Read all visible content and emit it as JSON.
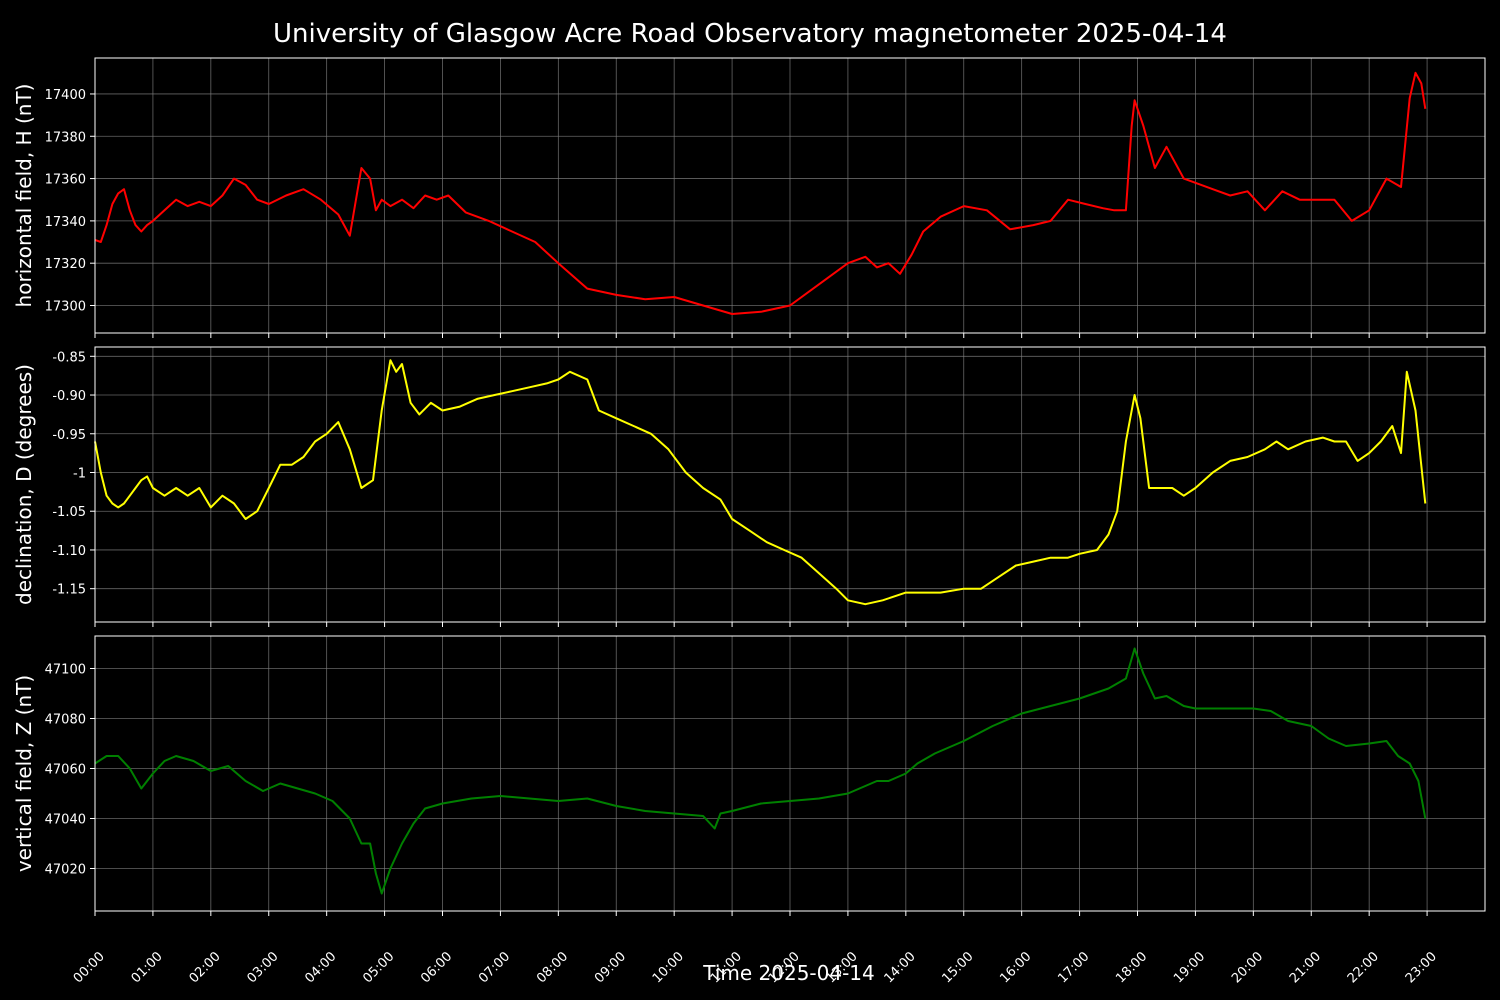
{
  "title": "University of Glasgow Acre Road Observatory magnetometer 2025-04-14",
  "xlabel": "Time 2025-04-14",
  "x_tick_labels": [
    "00:00",
    "01:00",
    "02:00",
    "03:00",
    "04:00",
    "05:00",
    "06:00",
    "07:00",
    "08:00",
    "09:00",
    "10:00",
    "11:00",
    "12:00",
    "13:00",
    "14:00",
    "15:00",
    "16:00",
    "17:00",
    "18:00",
    "19:00",
    "20:00",
    "21:00",
    "22:00",
    "23:00"
  ],
  "colors": {
    "background": "#000000",
    "H": "#ff0000",
    "D": "#ffff00",
    "Z": "#008000",
    "grid": "#808080",
    "axes": "#ffffff"
  },
  "chart_data": [
    {
      "type": "line",
      "ylabel": "horizontal field, H (nT)",
      "xlim": [
        0,
        24
      ],
      "ylim": [
        17287,
        17417
      ],
      "yticks": [
        17300,
        17320,
        17340,
        17360,
        17380,
        17400
      ],
      "grid": true,
      "series": [
        {
          "color": "#ff0000",
          "x": [
            0,
            0.1,
            0.2,
            0.3,
            0.4,
            0.5,
            0.6,
            0.7,
            0.8,
            0.9,
            1.0,
            1.2,
            1.4,
            1.6,
            1.8,
            2.0,
            2.2,
            2.4,
            2.6,
            2.8,
            3.0,
            3.3,
            3.6,
            3.9,
            4.2,
            4.4,
            4.6,
            4.75,
            4.85,
            4.95,
            5.1,
            5.3,
            5.5,
            5.7,
            5.9,
            6.1,
            6.4,
            6.8,
            7.2,
            7.6,
            8.0,
            8.5,
            9.0,
            9.5,
            10.0,
            10.5,
            11.0,
            11.5,
            12.0,
            12.5,
            13.0,
            13.3,
            13.5,
            13.7,
            13.9,
            14.1,
            14.3,
            14.6,
            15.0,
            15.4,
            15.8,
            16.2,
            16.5,
            16.8,
            17.1,
            17.4,
            17.6,
            17.8,
            17.9,
            17.95,
            18.1,
            18.3,
            18.5,
            18.8,
            19.0,
            19.3,
            19.6,
            19.9,
            20.2,
            20.5,
            20.8,
            21.1,
            21.4,
            21.7,
            22.0,
            22.3,
            22.55,
            22.7,
            22.8,
            22.9,
            22.97
          ],
          "y": [
            17331,
            17330,
            17338,
            17348,
            17353,
            17355,
            17345,
            17338,
            17335,
            17338,
            17340,
            17345,
            17350,
            17347,
            17349,
            17347,
            17352,
            17360,
            17357,
            17350,
            17348,
            17352,
            17355,
            17350,
            17343,
            17333,
            17365,
            17360,
            17345,
            17350,
            17347,
            17350,
            17346,
            17352,
            17350,
            17352,
            17344,
            17340,
            17335,
            17330,
            17320,
            17308,
            17305,
            17303,
            17304,
            17300,
            17296,
            17297,
            17300,
            17310,
            17320,
            17323,
            17318,
            17320,
            17315,
            17324,
            17335,
            17342,
            17347,
            17345,
            17336,
            17338,
            17340,
            17350,
            17348,
            17346,
            17345,
            17345,
            17385,
            17397,
            17385,
            17365,
            17375,
            17360,
            17358,
            17355,
            17352,
            17354,
            17345,
            17354,
            17350,
            17350,
            17350,
            17340,
            17345,
            17360,
            17356,
            17398,
            17410,
            17405,
            17393
          ]
        }
      ]
    },
    {
      "type": "line",
      "ylabel": "declination, D (degrees)",
      "xlim": [
        0,
        24
      ],
      "ylim": [
        -1.193,
        -0.838
      ],
      "yticks": [
        -1.15,
        -1.1,
        -1.05,
        -1.0,
        -0.95,
        -0.9,
        -0.85
      ],
      "grid": true,
      "series": [
        {
          "color": "#ffff00",
          "x": [
            0,
            0.1,
            0.2,
            0.3,
            0.4,
            0.5,
            0.6,
            0.7,
            0.8,
            0.9,
            1.0,
            1.2,
            1.4,
            1.6,
            1.8,
            2.0,
            2.2,
            2.4,
            2.6,
            2.8,
            3.0,
            3.2,
            3.4,
            3.6,
            3.8,
            4.0,
            4.2,
            4.4,
            4.6,
            4.8,
            4.95,
            5.1,
            5.2,
            5.3,
            5.45,
            5.6,
            5.8,
            6.0,
            6.3,
            6.6,
            6.9,
            7.2,
            7.5,
            7.8,
            8.0,
            8.2,
            8.5,
            8.7,
            9.0,
            9.3,
            9.6,
            9.9,
            10.2,
            10.5,
            10.8,
            11.0,
            11.3,
            11.6,
            11.9,
            12.2,
            12.5,
            12.8,
            13.0,
            13.3,
            13.6,
            14.0,
            14.3,
            14.6,
            15.0,
            15.3,
            15.6,
            15.9,
            16.2,
            16.5,
            16.8,
            17.0,
            17.3,
            17.5,
            17.65,
            17.8,
            17.95,
            18.05,
            18.2,
            18.4,
            18.6,
            18.8,
            19.0,
            19.3,
            19.6,
            19.9,
            20.2,
            20.4,
            20.6,
            20.9,
            21.2,
            21.4,
            21.6,
            21.8,
            22.0,
            22.2,
            22.4,
            22.55,
            22.65,
            22.8,
            22.97
          ],
          "y": [
            -0.96,
            -1.0,
            -1.03,
            -1.04,
            -1.045,
            -1.04,
            -1.03,
            -1.02,
            -1.01,
            -1.005,
            -1.02,
            -1.03,
            -1.02,
            -1.03,
            -1.02,
            -1.045,
            -1.03,
            -1.04,
            -1.06,
            -1.05,
            -1.02,
            -0.99,
            -0.99,
            -0.98,
            -0.96,
            -0.95,
            -0.935,
            -0.97,
            -1.02,
            -1.01,
            -0.92,
            -0.855,
            -0.87,
            -0.86,
            -0.91,
            -0.925,
            -0.91,
            -0.92,
            -0.915,
            -0.905,
            -0.9,
            -0.895,
            -0.89,
            -0.885,
            -0.88,
            -0.87,
            -0.88,
            -0.92,
            -0.93,
            -0.94,
            -0.95,
            -0.97,
            -1.0,
            -1.02,
            -1.035,
            -1.06,
            -1.075,
            -1.09,
            -1.1,
            -1.11,
            -1.13,
            -1.15,
            -1.165,
            -1.17,
            -1.165,
            -1.155,
            -1.155,
            -1.155,
            -1.15,
            -1.15,
            -1.135,
            -1.12,
            -1.115,
            -1.11,
            -1.11,
            -1.105,
            -1.1,
            -1.08,
            -1.05,
            -0.96,
            -0.9,
            -0.93,
            -1.02,
            -1.02,
            -1.02,
            -1.03,
            -1.02,
            -1.0,
            -0.985,
            -0.98,
            -0.97,
            -0.96,
            -0.97,
            -0.96,
            -0.955,
            -0.96,
            -0.96,
            -0.985,
            -0.975,
            -0.96,
            -0.94,
            -0.975,
            -0.87,
            -0.92,
            -1.04
          ]
        }
      ]
    },
    {
      "type": "line",
      "ylabel": "vertical field, Z (nT)",
      "xlim": [
        0,
        24
      ],
      "ylim": [
        47003,
        47113
      ],
      "yticks": [
        47020,
        47040,
        47060,
        47080,
        47100
      ],
      "grid": true,
      "series": [
        {
          "color": "#008000",
          "x": [
            0,
            0.2,
            0.4,
            0.6,
            0.8,
            1.0,
            1.2,
            1.4,
            1.7,
            2.0,
            2.3,
            2.6,
            2.9,
            3.2,
            3.5,
            3.8,
            4.1,
            4.4,
            4.6,
            4.75,
            4.85,
            4.95,
            5.1,
            5.3,
            5.5,
            5.7,
            6.0,
            6.5,
            7.0,
            7.5,
            8.0,
            8.5,
            9.0,
            9.5,
            10.0,
            10.5,
            10.7,
            10.8,
            11.0,
            11.5,
            12.0,
            12.5,
            13.0,
            13.5,
            13.7,
            14.0,
            14.2,
            14.5,
            15.0,
            15.5,
            16.0,
            16.5,
            17.0,
            17.5,
            17.8,
            17.95,
            18.1,
            18.3,
            18.5,
            18.8,
            19.0,
            19.5,
            20.0,
            20.3,
            20.6,
            21.0,
            21.3,
            21.6,
            22.0,
            22.3,
            22.5,
            22.7,
            22.85,
            22.97
          ],
          "y": [
            47062,
            47065,
            47065,
            47060,
            47052,
            47058,
            47063,
            47065,
            47063,
            47059,
            47061,
            47055,
            47051,
            47054,
            47052,
            47050,
            47047,
            47040,
            47030,
            47030,
            47018,
            47010,
            47020,
            47030,
            47038,
            47044,
            47046,
            47048,
            47049,
            47048,
            47047,
            47048,
            47045,
            47043,
            47042,
            47041,
            47036,
            47042,
            47043,
            47046,
            47047,
            47048,
            47050,
            47055,
            47055,
            47058,
            47062,
            47066,
            47071,
            47077,
            47082,
            47085,
            47088,
            47092,
            47096,
            47108,
            47098,
            47088,
            47089,
            47085,
            47084,
            47084,
            47084,
            47083,
            47079,
            47077,
            47072,
            47069,
            47070,
            47071,
            47065,
            47062,
            47055,
            47040
          ]
        }
      ]
    }
  ]
}
